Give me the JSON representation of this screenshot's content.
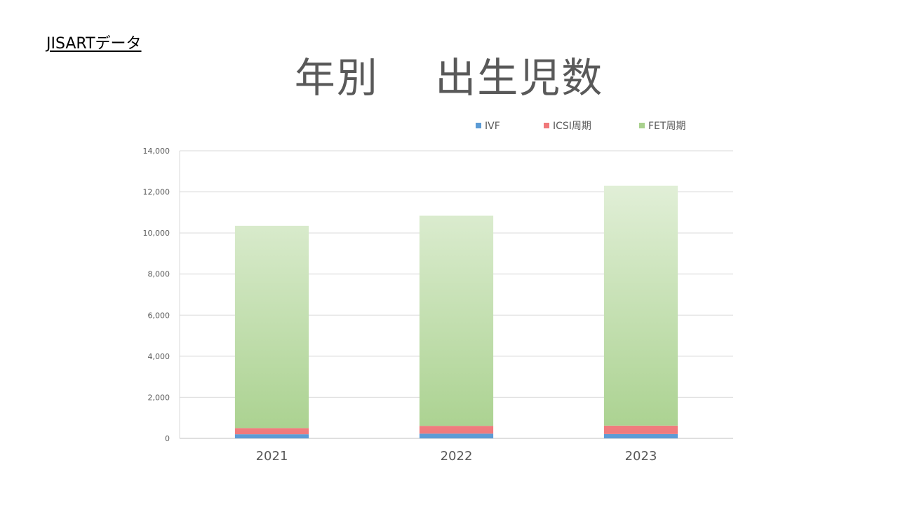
{
  "page": {
    "source_label": "JISARTデータ",
    "title": "年別　 出生児数"
  },
  "chart_data": {
    "type": "bar",
    "stacked": true,
    "categories": [
      "2021",
      "2022",
      "2023"
    ],
    "series": [
      {
        "name": "IVF",
        "values": [
          200,
          230,
          210
        ],
        "color": "#5B9BD5"
      },
      {
        "name": "ICSI周期",
        "values": [
          300,
          380,
          410
        ],
        "color": "#F0787A"
      },
      {
        "name": "FET周期",
        "values": [
          9850,
          10230,
          11680
        ],
        "color": "#A9D18E"
      }
    ],
    "ylim": [
      0,
      14000
    ],
    "yticks": [
      "0",
      "2,000",
      "4,000",
      "6,000",
      "8,000",
      "10,000",
      "12,000",
      "14,000"
    ],
    "grid": true,
    "legend_position": "top-right",
    "xlabel": "",
    "ylabel": ""
  }
}
